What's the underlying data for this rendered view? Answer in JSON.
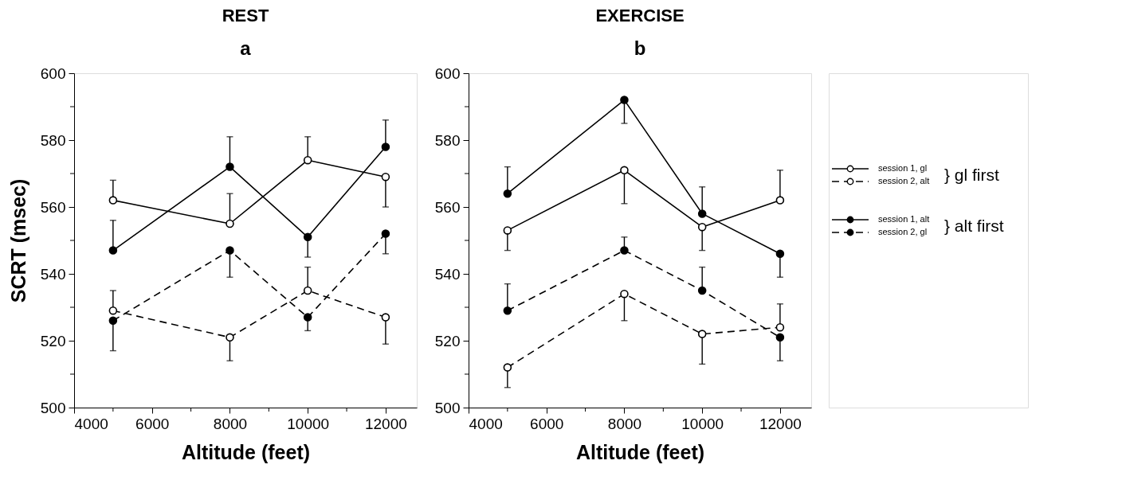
{
  "chart_data": [
    {
      "type": "line",
      "title": "REST",
      "subtitle": "a",
      "xlabel": "Altitude (feet)",
      "ylabel": "SCRT (msec)",
      "x": [
        5000,
        8000,
        10000,
        12000
      ],
      "xlim": [
        4000,
        12800
      ],
      "xticks": [
        4000,
        {
          "value": 5000,
          "label": null
        },
        6000,
        {
          "value": 7000,
          "label": null
        },
        8000,
        {
          "value": 9000,
          "label": null
        },
        10000,
        {
          "value": 11000,
          "label": null
        },
        12000
      ],
      "ylim": [
        500,
        600
      ],
      "yticks": [
        500,
        {
          "value": 510,
          "label": null
        },
        520,
        {
          "value": 530,
          "label": null
        },
        540,
        {
          "value": 550,
          "label": null
        },
        560,
        {
          "value": 570,
          "label": null
        },
        580,
        {
          "value": 590,
          "label": null
        },
        600
      ],
      "grid": false,
      "marker": "circle",
      "series": [
        {
          "color": "#ffffff",
          "line_style": "solid",
          "values": [
            562,
            555,
            574,
            569
          ],
          "errors": [
            [
              562,
              568
            ],
            [
              555,
              564
            ],
            [
              574,
              581
            ],
            [
              560,
              569
            ]
          ]
        },
        {
          "color": "#ffffff",
          "line_style": "dashed",
          "values": [
            529,
            521,
            535,
            527
          ],
          "errors": [
            [
              529,
              535
            ],
            [
              514,
              521
            ],
            [
              535,
              542
            ],
            [
              519,
              527
            ]
          ]
        },
        {
          "color": "#000000",
          "line_style": "solid",
          "values": [
            547,
            572,
            551,
            578
          ],
          "errors": [
            [
              547,
              556
            ],
            [
              572,
              581
            ],
            [
              545,
              551
            ],
            [
              578,
              586
            ]
          ]
        },
        {
          "color": "#000000",
          "line_style": "dashed",
          "values": [
            526,
            547,
            527,
            552
          ],
          "errors": [
            [
              517,
              526
            ],
            [
              539,
              547
            ],
            [
              523,
              527
            ],
            [
              546,
              552
            ]
          ]
        }
      ]
    },
    {
      "type": "line",
      "title": "EXERCISE",
      "subtitle": "b",
      "xlabel": "Altitude (feet)",
      "x": [
        5000,
        8000,
        10000,
        12000
      ],
      "xlim": [
        4000,
        12800
      ],
      "xticks": [
        4000,
        {
          "value": 5000,
          "label": null
        },
        6000,
        {
          "value": 7000,
          "label": null
        },
        8000,
        {
          "value": 9000,
          "label": null
        },
        10000,
        {
          "value": 11000,
          "label": null
        },
        12000
      ],
      "ylim": [
        500,
        600
      ],
      "yticks": [
        500,
        {
          "value": 510,
          "label": null
        },
        520,
        {
          "value": 530,
          "label": null
        },
        540,
        {
          "value": 550,
          "label": null
        },
        560,
        {
          "value": 570,
          "label": null
        },
        580,
        {
          "value": 590,
          "label": null
        },
        600
      ],
      "grid": false,
      "marker": "circle",
      "legend": "right",
      "annotations": [
        "} gl first",
        "} alt first"
      ],
      "series": [
        {
          "name": "session 1, gl",
          "color": "#ffffff",
          "line_style": "solid",
          "values": [
            553,
            571,
            554,
            562
          ],
          "errors": [
            [
              547,
              553
            ],
            [
              561,
              571
            ],
            [
              547,
              554
            ],
            [
              562,
              571
            ]
          ]
        },
        {
          "name": "session 2, alt",
          "color": "#ffffff",
          "line_style": "dashed",
          "values": [
            512,
            534,
            522,
            524
          ],
          "errors": [
            [
              506,
              512
            ],
            [
              526,
              534
            ],
            [
              513,
              522
            ],
            [
              524,
              531
            ]
          ]
        },
        {
          "name": "session 1, alt",
          "color": "#000000",
          "line_style": "solid",
          "values": [
            564,
            592,
            558,
            546
          ],
          "errors": [
            [
              564,
              572
            ],
            [
              585,
              592
            ],
            [
              558,
              566
            ],
            [
              539,
              546
            ]
          ]
        },
        {
          "name": "session 2, gl",
          "color": "#000000",
          "line_style": "dashed",
          "values": [
            529,
            547,
            535,
            521
          ],
          "errors": [
            [
              529,
              537
            ],
            [
              547,
              551
            ],
            [
              535,
              542
            ],
            [
              514,
              521
            ]
          ]
        }
      ]
    }
  ]
}
